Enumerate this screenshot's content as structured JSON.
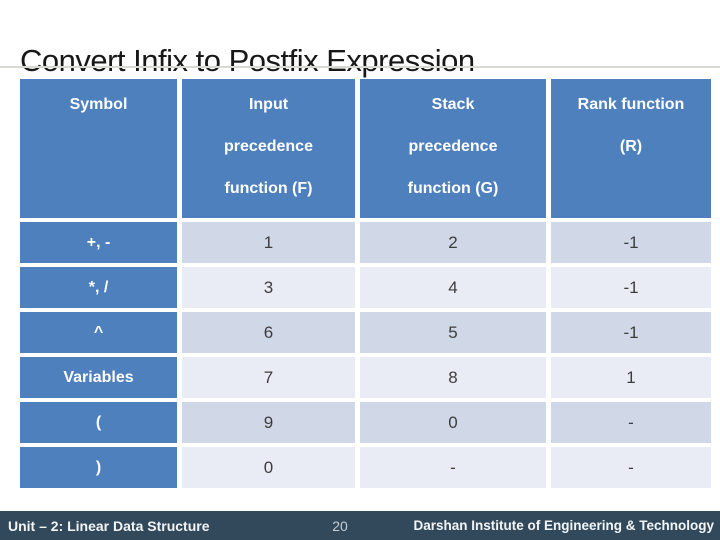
{
  "title": "Convert Infix to Postfix Expression",
  "table": {
    "header": {
      "symbol": [
        "Symbol"
      ],
      "input": [
        "Input",
        "precedence",
        "function (F)"
      ],
      "stack": [
        "Stack",
        "precedence",
        "function (G)"
      ],
      "rank": [
        "Rank function",
        "(R)"
      ]
    },
    "rows": [
      {
        "symbol": "+, -",
        "input": "1",
        "stack": "2",
        "rank": "-1"
      },
      {
        "symbol": "*, /",
        "input": "3",
        "stack": "4",
        "rank": "-1"
      },
      {
        "symbol": "^",
        "input": "6",
        "stack": "5",
        "rank": "-1"
      },
      {
        "symbol": "Variables",
        "input": "7",
        "stack": "8",
        "rank": "1"
      },
      {
        "symbol": "(",
        "input": "9",
        "stack": "0",
        "rank": "-"
      },
      {
        "symbol": ")",
        "input": "0",
        "stack": "-",
        "rank": "-"
      }
    ]
  },
  "footer": {
    "left": "Unit – 2: Linear Data Structure",
    "page_number": "20",
    "right": "Darshan Institute of Engineering & Technology"
  },
  "colors": {
    "header_blue": "#4e80bd",
    "band_dark": "#d0d7e6",
    "band_light": "#e9ecf4",
    "footer_bg": "#32495b",
    "underline": "#d9d9d4"
  }
}
